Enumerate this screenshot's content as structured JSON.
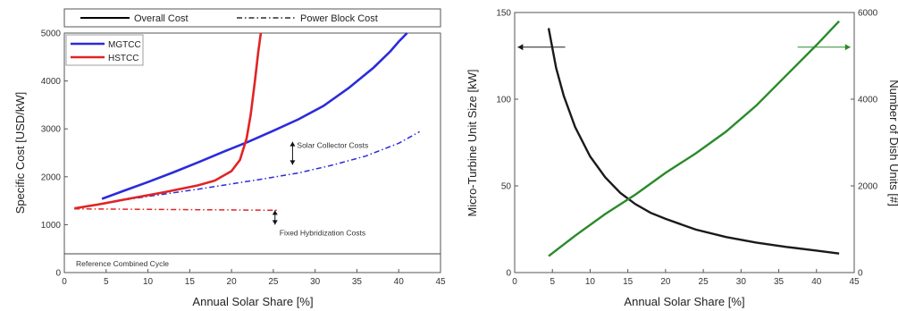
{
  "chart_data": [
    {
      "type": "line",
      "xlabel": "Annual Solar Share [%]",
      "ylabel": "Specific Cost [USD/kW]",
      "xlim": [
        0,
        45
      ],
      "ylim": [
        0,
        5000
      ],
      "x_ticks": [
        0,
        5,
        10,
        15,
        20,
        25,
        30,
        35,
        40,
        45
      ],
      "y_ticks": [
        0,
        1000,
        2000,
        3000,
        4000,
        5000
      ],
      "grid": false,
      "legend_top": [
        {
          "label": "Overall Cost",
          "style": "solid",
          "color": "#000000"
        },
        {
          "label": "Power Block Cost",
          "style": "dashdot",
          "color": "#000000"
        }
      ],
      "legend_inner": [
        {
          "label": "MGTCC",
          "color": "#2b2bdc"
        },
        {
          "label": "HSTCC",
          "color": "#e02424"
        }
      ],
      "series": [
        {
          "name": "MGTCC",
          "kind": "overall",
          "color": "#2b2bdc",
          "style": "solid",
          "x": [
            4.5,
            7,
            10,
            13,
            16,
            19,
            22,
            25,
            28,
            31,
            34,
            37,
            39,
            40,
            41
          ],
          "y": [
            1540,
            1700,
            1890,
            2090,
            2300,
            2520,
            2730,
            2960,
            3200,
            3480,
            3850,
            4280,
            4620,
            4820,
            5000
          ]
        },
        {
          "name": "MGTCC",
          "kind": "power_block",
          "color": "#2b2bdc",
          "style": "dashdot",
          "x": [
            4.5,
            8,
            12,
            16,
            20,
            24,
            28,
            32,
            36,
            40,
            42.5
          ],
          "y": [
            1430,
            1540,
            1640,
            1740,
            1850,
            1960,
            2080,
            2240,
            2430,
            2700,
            2940
          ]
        },
        {
          "name": "HSTCC",
          "kind": "overall",
          "color": "#e02424",
          "style": "solid",
          "x": [
            1.2,
            4,
            8,
            12,
            16,
            18,
            20,
            21,
            21.8,
            22.3,
            22.8,
            23.2,
            23.5
          ],
          "y": [
            1340,
            1420,
            1550,
            1680,
            1820,
            1920,
            2120,
            2350,
            2800,
            3300,
            4000,
            4600,
            5000
          ]
        },
        {
          "name": "HSTCC",
          "kind": "power_block",
          "color": "#e02424",
          "style": "dashdot",
          "x": [
            1.2,
            25.5
          ],
          "y": [
            1330,
            1300
          ]
        }
      ],
      "reference_line": {
        "y": 1000,
        "label": "Reference Combined Cycle"
      },
      "annotations": [
        {
          "text": "Solar Collector Costs",
          "arrow_x": 27.3,
          "y_from": 2250,
          "y_to": 2730
        },
        {
          "text": "Fixed Hybridization Costs",
          "arrow_x": 25.2,
          "y_from": 1000,
          "y_to": 1300
        }
      ]
    },
    {
      "type": "line",
      "xlabel": "Annual Solar Share [%]",
      "ylabel": "Micro-Turbine Unit Size [kW]",
      "y2label": "Number of Dish Units [#]",
      "xlim": [
        0,
        45
      ],
      "ylim": [
        0,
        150
      ],
      "y2lim": [
        0,
        6000
      ],
      "x_ticks": [
        0,
        5,
        10,
        15,
        20,
        25,
        30,
        35,
        40,
        45
      ],
      "y_ticks": [
        0,
        50,
        100,
        150
      ],
      "y2_ticks": [
        0,
        2000,
        4000,
        6000
      ],
      "grid": false,
      "series": [
        {
          "kind": "unit_size",
          "axis": "left",
          "color": "#1a1a1a",
          "style": "solid",
          "x": [
            4.5,
            5.5,
            6.5,
            8,
            10,
            12,
            14,
            16,
            18,
            20,
            24,
            28,
            32,
            36,
            40,
            43
          ],
          "y": [
            141,
            118,
            102,
            84,
            67,
            55,
            46,
            39.5,
            34.5,
            31,
            24.8,
            20.5,
            17.3,
            14.8,
            12.7,
            11
          ]
        },
        {
          "kind": "dish_units",
          "axis": "right",
          "color": "#2a8a2a",
          "style": "solid",
          "x": [
            4.5,
            8,
            12,
            16,
            20,
            24,
            28,
            32,
            36,
            40,
            43
          ],
          "y": [
            380,
            850,
            1350,
            1800,
            2300,
            2750,
            3250,
            3850,
            4550,
            5250,
            5800
          ]
        }
      ],
      "arrows": [
        {
          "direction": "left",
          "y": 130,
          "from_x": 6.7,
          "to_x": 0.4
        },
        {
          "direction": "right",
          "y": 130,
          "from_x": 37.5,
          "to_x": 44.5
        }
      ]
    }
  ]
}
